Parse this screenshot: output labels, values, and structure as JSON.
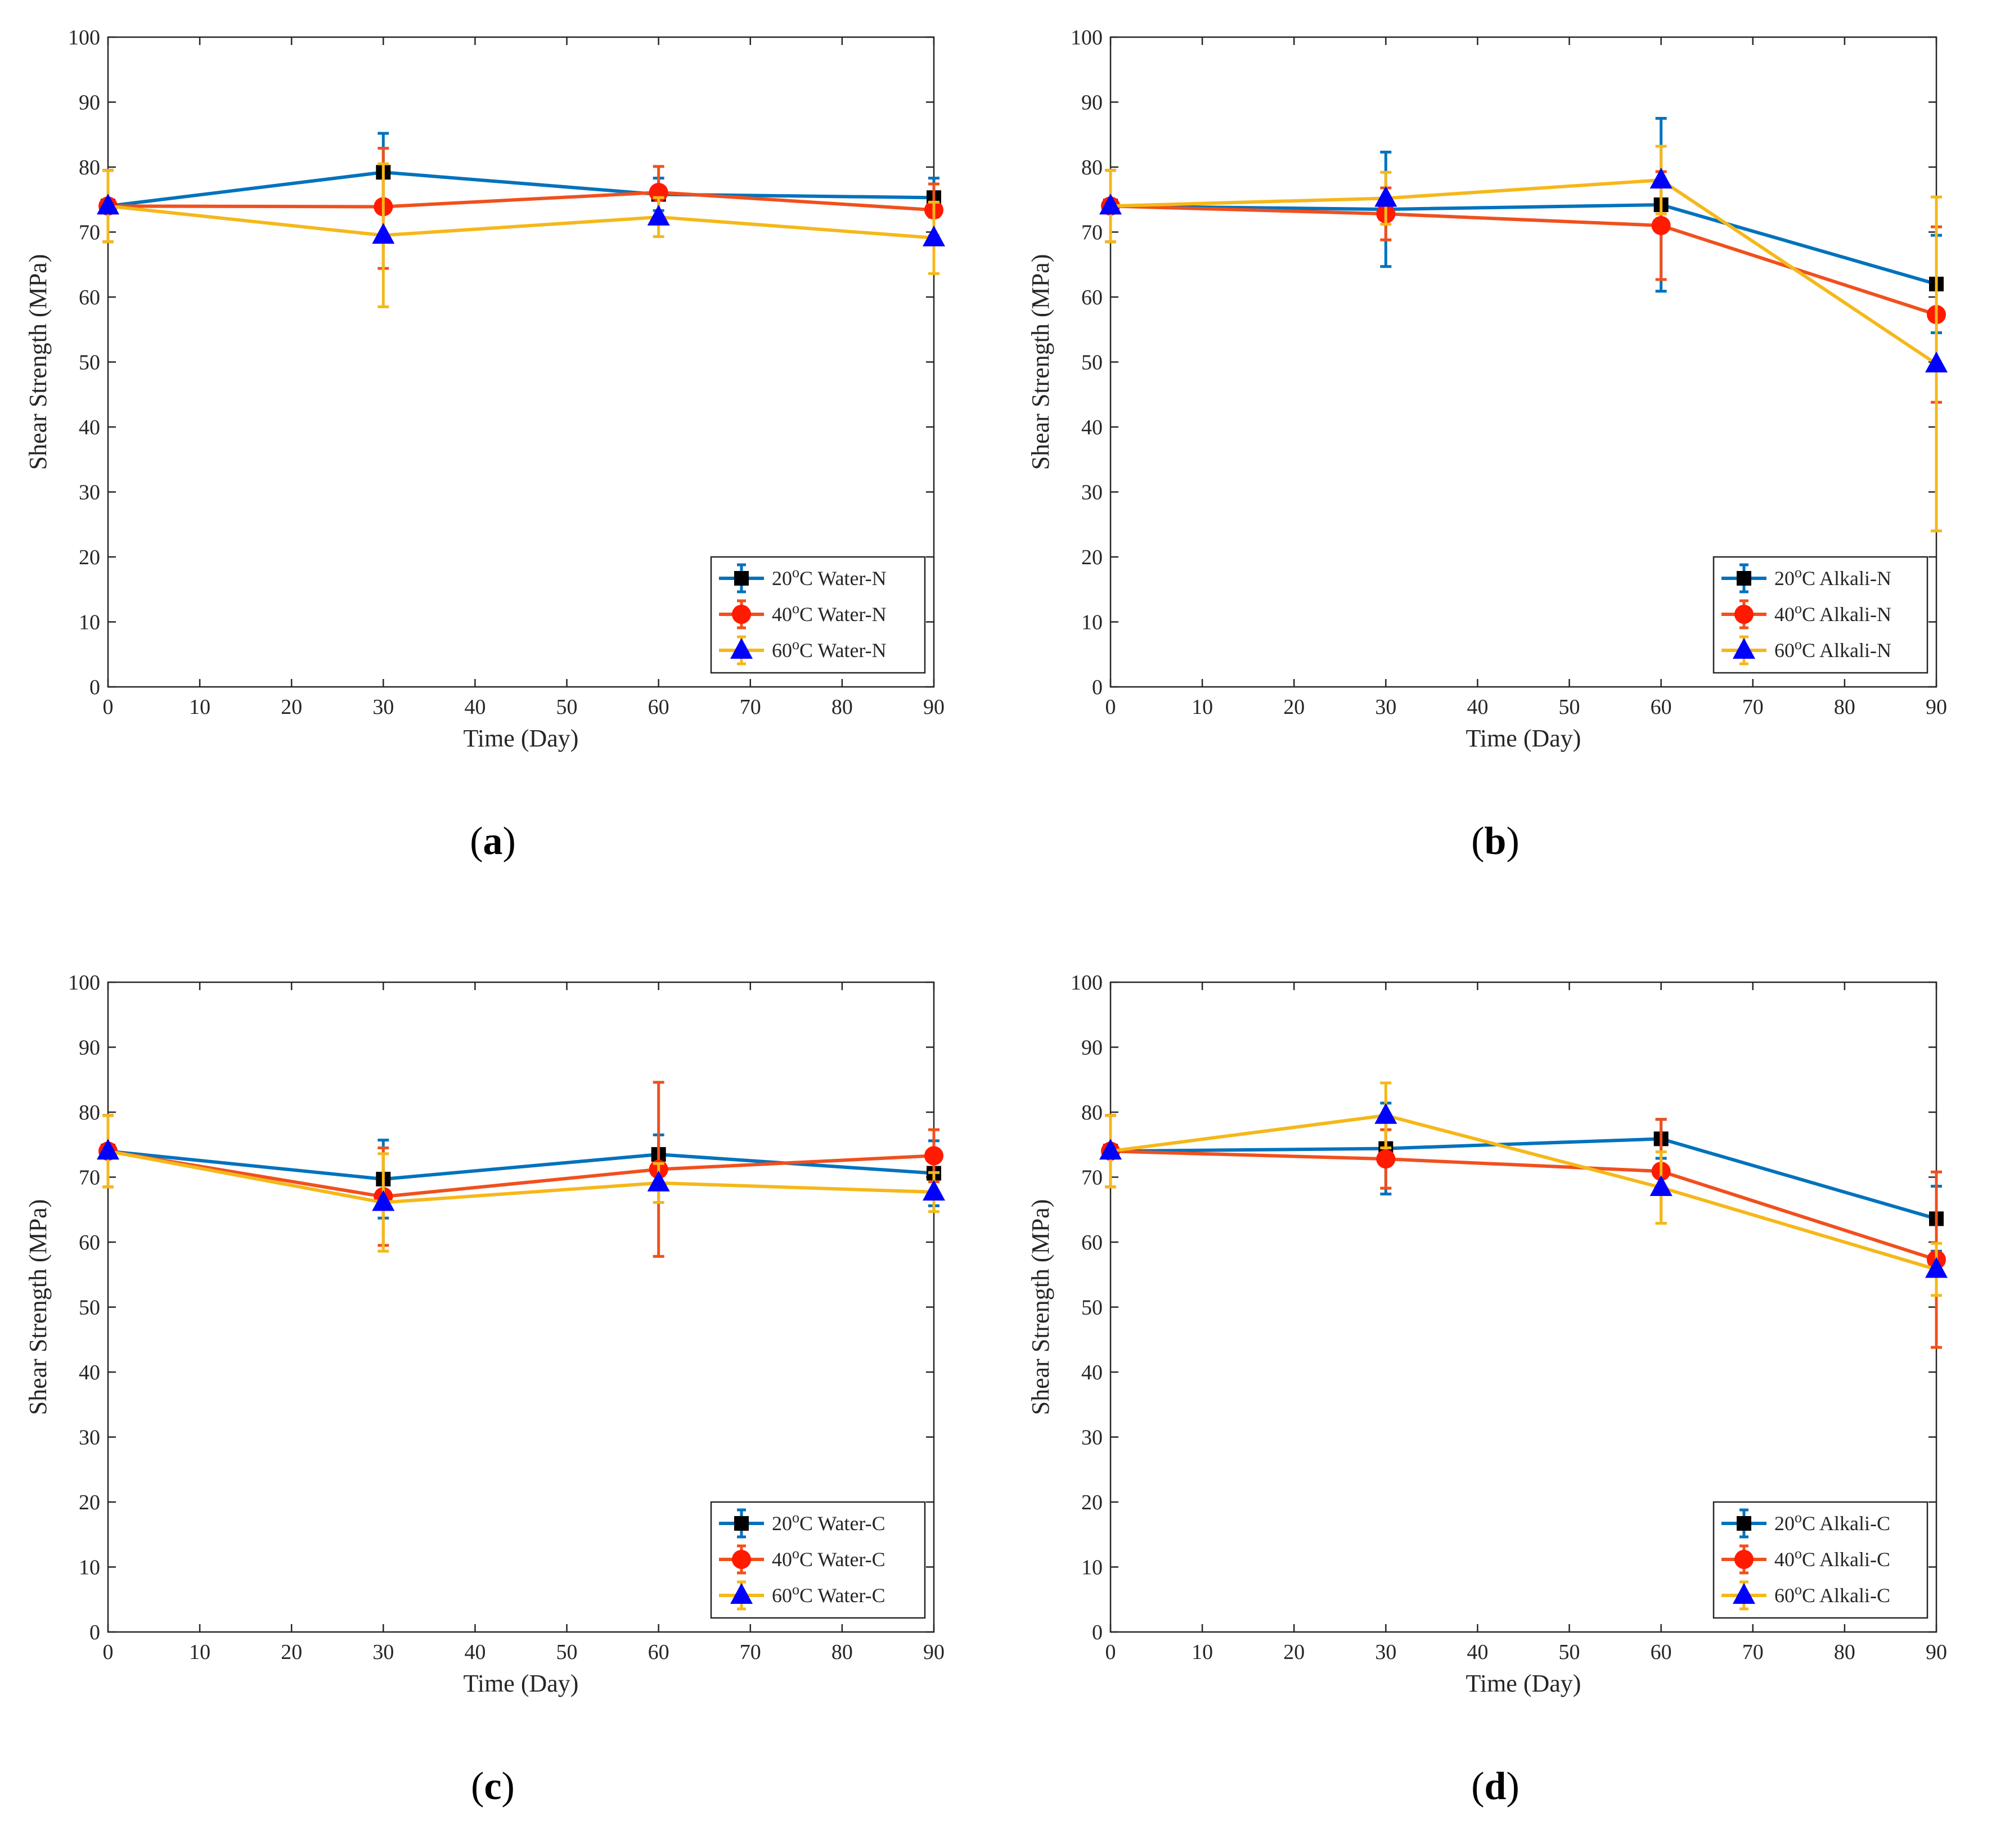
{
  "colors": {
    "series_lines": [
      "#0072BD",
      "#F0501E",
      "#F5B81A"
    ],
    "markers": [
      "#000000",
      "#FF1A00",
      "#0000FF"
    ],
    "axes": "#262626"
  },
  "marker_shapes": [
    "square",
    "circle",
    "triangle"
  ],
  "chart_data": [
    {
      "type": "line",
      "caption_open": "(",
      "caption_letter": "a",
      "caption_close": ")",
      "xlabel": "Time (Day)",
      "ylabel": "Shear Strength (MPa)",
      "xlim": [
        0,
        90
      ],
      "ylim": [
        0,
        100
      ],
      "xticks": [
        0,
        10,
        20,
        30,
        40,
        50,
        60,
        70,
        80,
        90
      ],
      "yticks": [
        0,
        10,
        20,
        30,
        40,
        50,
        60,
        70,
        80,
        90,
        100
      ],
      "grid": false,
      "legend_position": "bottom-right",
      "x": [
        0,
        30,
        60,
        90
      ],
      "series": [
        {
          "name_prefix": "20",
          "name_suffix": "C Water-N",
          "values": [
            74,
            79.2,
            75.8,
            75.3
          ],
          "err_low": [
            5.5,
            6,
            2.5,
            3
          ],
          "err_high": [
            5.5,
            6,
            2.5,
            3
          ]
        },
        {
          "name_prefix": "40",
          "name_suffix": "C Water-N",
          "values": [
            74,
            73.9,
            76.1,
            73.4
          ],
          "err_low": [
            5.5,
            9.5,
            4,
            4
          ],
          "err_high": [
            5.5,
            9,
            4,
            4
          ]
        },
        {
          "name_prefix": "60",
          "name_suffix": "C Water-N",
          "values": [
            74,
            69.5,
            72.3,
            69.1
          ],
          "err_low": [
            5.5,
            11,
            3,
            5.5
          ],
          "err_high": [
            5.5,
            11,
            3,
            5.5
          ]
        }
      ]
    },
    {
      "type": "line",
      "caption_open": "(",
      "caption_letter": "b",
      "caption_close": ")",
      "xlabel": "Time (Day)",
      "ylabel": "Shear Strength (MPa)",
      "xlim": [
        0,
        90
      ],
      "ylim": [
        0,
        100
      ],
      "xticks": [
        0,
        10,
        20,
        30,
        40,
        50,
        60,
        70,
        80,
        90
      ],
      "yticks": [
        0,
        10,
        20,
        30,
        40,
        50,
        60,
        70,
        80,
        90,
        100
      ],
      "grid": false,
      "legend_position": "bottom-right",
      "x": [
        0,
        30,
        60,
        90
      ],
      "series": [
        {
          "name_prefix": "20",
          "name_suffix": "C Alkali-N",
          "values": [
            74,
            73.5,
            74.2,
            62
          ],
          "err_low": [
            5.5,
            8.8,
            13.3,
            7.5
          ],
          "err_high": [
            5.5,
            8.8,
            13.3,
            7.5
          ]
        },
        {
          "name_prefix": "40",
          "name_suffix": "C Alkali-N",
          "values": [
            74,
            72.8,
            71,
            57.3
          ],
          "err_low": [
            5.5,
            4,
            8.3,
            13.5
          ],
          "err_high": [
            5.5,
            4,
            8.3,
            13.5
          ]
        },
        {
          "name_prefix": "60",
          "name_suffix": "C Alkali-N",
          "values": [
            74,
            75.2,
            78,
            49.7
          ],
          "err_low": [
            5.5,
            4,
            5.2,
            25.7
          ],
          "err_high": [
            5.5,
            4,
            5.2,
            25.7
          ]
        }
      ]
    },
    {
      "type": "line",
      "caption_open": "(",
      "caption_letter": "c",
      "caption_close": ")",
      "xlabel": "Time (Day)",
      "ylabel": "Shear Strength (MPa)",
      "xlim": [
        0,
        90
      ],
      "ylim": [
        0,
        100
      ],
      "xticks": [
        0,
        10,
        20,
        30,
        40,
        50,
        60,
        70,
        80,
        90
      ],
      "yticks": [
        0,
        10,
        20,
        30,
        40,
        50,
        60,
        70,
        80,
        90,
        100
      ],
      "grid": false,
      "legend_position": "bottom-right",
      "x": [
        0,
        30,
        60,
        90
      ],
      "series": [
        {
          "name_prefix": "20",
          "name_suffix": "C Water-C",
          "values": [
            74,
            69.7,
            73.5,
            70.6
          ],
          "err_low": [
            5.5,
            6,
            3,
            5
          ],
          "err_high": [
            5.5,
            6,
            3,
            5
          ]
        },
        {
          "name_prefix": "40",
          "name_suffix": "C Water-C",
          "values": [
            74,
            67,
            71.2,
            73.3
          ],
          "err_low": [
            5.5,
            7.5,
            13.4,
            4
          ],
          "err_high": [
            5.5,
            7.5,
            13.4,
            4
          ]
        },
        {
          "name_prefix": "60",
          "name_suffix": "C Water-C",
          "values": [
            74,
            66.1,
            69.1,
            67.7
          ],
          "err_low": [
            5.5,
            7.5,
            3,
            3
          ],
          "err_high": [
            5.5,
            7.5,
            3,
            3
          ]
        }
      ]
    },
    {
      "type": "line",
      "caption_open": "(",
      "caption_letter": "d",
      "caption_close": ")",
      "xlabel": "Time (Day)",
      "ylabel": "Shear Strength (MPa)",
      "xlim": [
        0,
        90
      ],
      "ylim": [
        0,
        100
      ],
      "xticks": [
        0,
        10,
        20,
        30,
        40,
        50,
        60,
        70,
        80,
        90
      ],
      "yticks": [
        0,
        10,
        20,
        30,
        40,
        50,
        60,
        70,
        80,
        90,
        100
      ],
      "grid": false,
      "legend_position": "bottom-right",
      "x": [
        0,
        30,
        60,
        90
      ],
      "series": [
        {
          "name_prefix": "20",
          "name_suffix": "C Alkali-C",
          "values": [
            74,
            74.4,
            75.9,
            63.6
          ],
          "err_low": [
            5.5,
            7,
            3,
            5
          ],
          "err_high": [
            5.5,
            7,
            3,
            5
          ]
        },
        {
          "name_prefix": "40",
          "name_suffix": "C Alkali-C",
          "values": [
            74,
            72.8,
            70.9,
            57.3
          ],
          "err_low": [
            5.5,
            4.5,
            8,
            13.5
          ],
          "err_high": [
            5.5,
            4.5,
            8,
            13.5
          ]
        },
        {
          "name_prefix": "60",
          "name_suffix": "C Alkali-C",
          "values": [
            74,
            79.5,
            68.4,
            55.8
          ],
          "err_low": [
            5.5,
            5,
            5.5,
            4
          ],
          "err_high": [
            5.5,
            5,
            5.5,
            4
          ]
        }
      ]
    }
  ]
}
